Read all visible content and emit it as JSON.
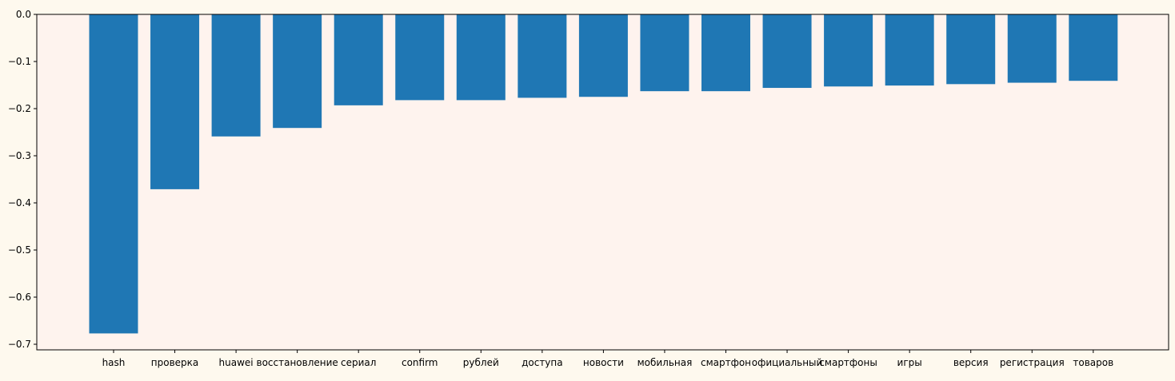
{
  "chart_data": {
    "type": "bar",
    "title": "",
    "xlabel": "",
    "ylabel": "",
    "categories": [
      "hash",
      "проверка",
      "huawei",
      "восстановление",
      "сериал",
      "confirm",
      "рублей",
      "доступа",
      "новости",
      "мобильная",
      "смартфон",
      "официальный",
      "смартфоны",
      "игры",
      "версия",
      "регистрация",
      "товаров"
    ],
    "values": [
      -0.677,
      -0.371,
      -0.259,
      -0.241,
      -0.193,
      -0.182,
      -0.182,
      -0.177,
      -0.175,
      -0.163,
      -0.163,
      -0.156,
      -0.153,
      -0.151,
      -0.148,
      -0.145,
      -0.141
    ],
    "yticks": [
      "0.0",
      "−0.1",
      "−0.2",
      "−0.3",
      "−0.4",
      "−0.5",
      "−0.6",
      "−0.7"
    ],
    "ylim": [
      -0.7,
      0.0
    ],
    "bar_color": "#1f77b4",
    "plot_background": "#fef3ee",
    "figure_background": "#fef9ee",
    "grid": false,
    "legend": "none"
  }
}
